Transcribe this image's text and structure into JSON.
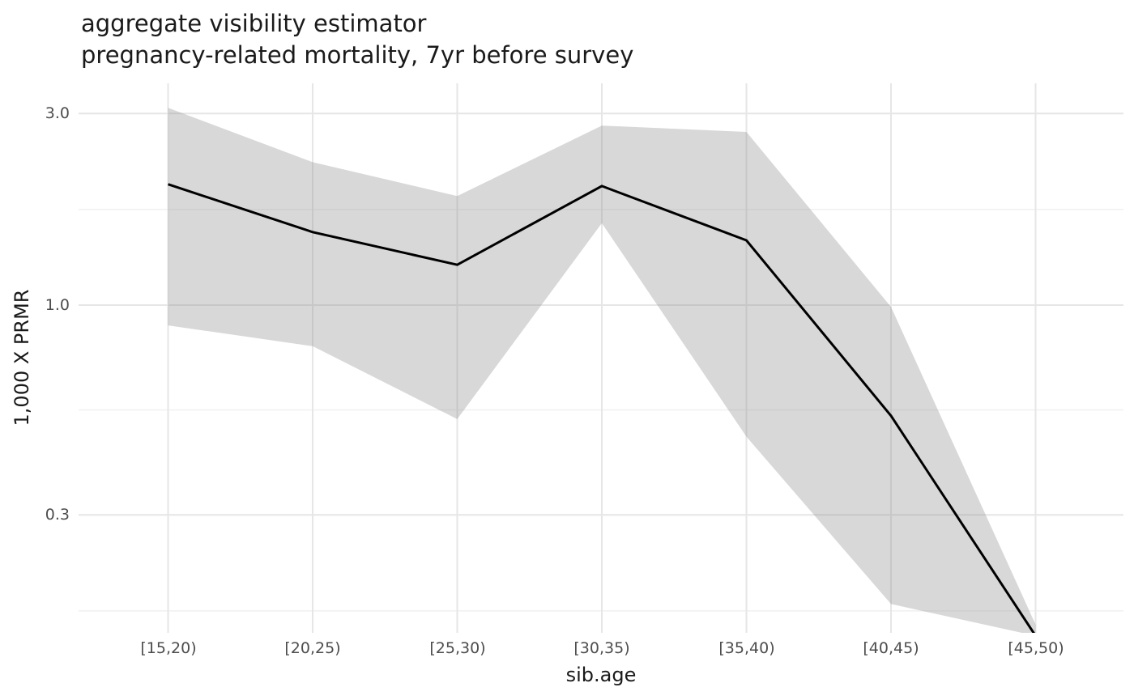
{
  "title": {
    "line1": "aggregate visibility estimator",
    "line2": "pregnancy-related mortality, 7yr before survey"
  },
  "chart_data": {
    "type": "line",
    "title": "aggregate visibility estimator\npregnancy-related mortality, 7yr before survey",
    "xlabel": "sib.age",
    "ylabel": "1,000 X PRMR",
    "categories": [
      "[15,20)",
      "[20,25)",
      "[25,30)",
      "[30,35)",
      "[35,40)",
      "[40,45)",
      "[45,50)"
    ],
    "series": [
      {
        "name": "estimate",
        "values": [
          2.0,
          1.52,
          1.26,
          1.98,
          1.45,
          0.53,
          0.15
        ]
      },
      {
        "name": "ci_upper",
        "values": [
          3.1,
          2.27,
          1.87,
          2.8,
          2.7,
          0.99,
          0.16
        ]
      },
      {
        "name": "ci_lower",
        "values": [
          0.89,
          0.79,
          0.52,
          1.6,
          0.47,
          0.18,
          0.15
        ]
      }
    ],
    "y_scale": "log",
    "y_axis_range": [
      0.15,
      3.6
    ],
    "y_ticks": [
      3.0,
      1.0,
      0.3
    ],
    "y_tick_labels": [
      "3.0",
      "1.0",
      "0.3"
    ],
    "y_minor_gridlines": [
      1.732,
      0.548,
      0.173
    ],
    "grid": true,
    "legend": "none",
    "colors": {
      "line": "#000000",
      "ribbon_fill": "rgba(140,140,140,0.34)",
      "grid_major": "#e6e6e6",
      "grid_minor": "#f0f0f0",
      "tick_text": "#4d4d4d",
      "title_text": "#1a1a1a",
      "background": "#ffffff"
    }
  }
}
